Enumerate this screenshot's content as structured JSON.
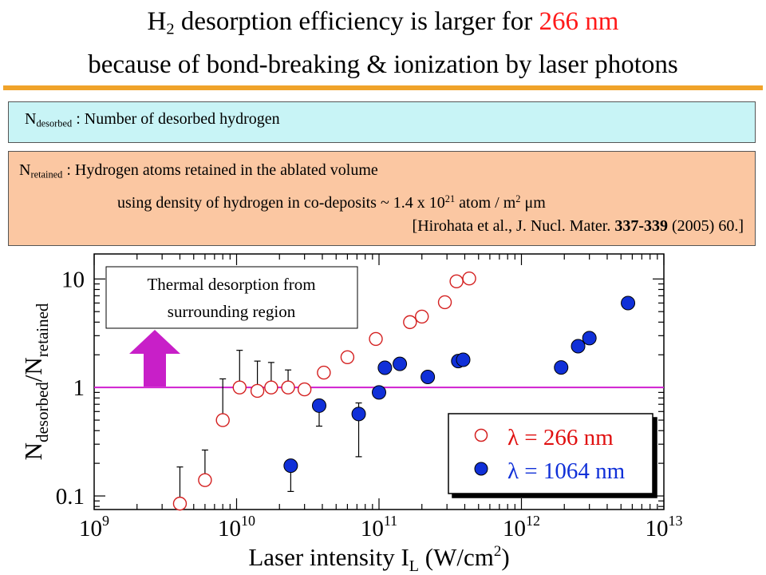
{
  "header": {
    "line1_prefix": "H",
    "line1_sub": "2",
    "line1_middle": " desorption efficiency is larger for ",
    "line1_highlight": "266 nm",
    "line2": "because of bond-breaking & ionization by laser photons"
  },
  "box_desorbed": {
    "symbol": "N",
    "sub": "desorbed",
    "text": " : Number of desorbed hydrogen"
  },
  "box_retained": {
    "symbol": "N",
    "sub": "retained",
    "text": " : Hydrogen atoms retained in the ablated volume",
    "line2_a": "using density of hydrogen in co-deposits ~ 1.4 x 10",
    "line2_exp": "21",
    "line2_b": " atom / m",
    "line2_exp2": "2",
    "line2_c": " μm",
    "ref_a": "[Hirohata et al., J. Nucl. Mater. ",
    "ref_bold": "337-339",
    "ref_b": " (2005) 60.]"
  },
  "colors": {
    "accent_title": "#ff1a1a",
    "rule": "#f0a32a",
    "box_desorbed_bg": "#c8f4f6",
    "box_retained_bg": "#fbc7a2",
    "series_266": "#d42020",
    "series_1064": "#1030d8",
    "threshold_line": "#d020d0"
  },
  "chart_data": {
    "type": "scatter",
    "x_scale": "log",
    "y_scale": "log",
    "xlim": [
      1000000000.0,
      10000000000000.0
    ],
    "ylim": [
      0.075,
      17
    ],
    "x_ticks": [
      {
        "value": 1000000000.0,
        "base": "10",
        "exp": "9"
      },
      {
        "value": 10000000000.0,
        "base": "10",
        "exp": "10"
      },
      {
        "value": 100000000000.0,
        "base": "10",
        "exp": "11"
      },
      {
        "value": 1000000000000.0,
        "base": "10",
        "exp": "12"
      },
      {
        "value": 10000000000000.0,
        "base": "10",
        "exp": "13"
      }
    ],
    "y_ticks": [
      {
        "value": 0.1,
        "label": "0.1"
      },
      {
        "value": 1,
        "label": "1"
      },
      {
        "value": 10,
        "label": "10"
      }
    ],
    "xlabel": {
      "a": "Laser intensity I",
      "sub": "L",
      "b": " (W/cm",
      "sup": "2",
      "c": ")"
    },
    "ylabel": {
      "n1": "N",
      "s1": "desorbed",
      "slash": "/",
      "n2": "N",
      "s2": "retained"
    },
    "reference_line_y": 1,
    "annotation": {
      "line1": "Thermal desorption from",
      "line2": "surrounding region",
      "arrow": "up-arrow"
    },
    "legend": {
      "position": "bottom-right",
      "entries": [
        {
          "marker": "open-circle",
          "label": "λ = 266 nm"
        },
        {
          "marker": "filled-circle",
          "label": "λ = 1064 nm"
        }
      ]
    },
    "series": [
      {
        "name": "λ = 266 nm",
        "marker": "open-circle",
        "points": [
          {
            "x": 4000000000.0,
            "y": 0.085,
            "err_up": 0.185
          },
          {
            "x": 6000000000.0,
            "y": 0.14,
            "err_up": 0.265
          },
          {
            "x": 8000000000.0,
            "y": 0.5,
            "err_up": 1.2
          },
          {
            "x": 10500000000.0,
            "y": 1.0,
            "err_up": 2.2
          },
          {
            "x": 14000000000.0,
            "y": 0.93,
            "err_up": 1.75
          },
          {
            "x": 17500000000.0,
            "y": 1.0,
            "err_up": 1.7
          },
          {
            "x": 23000000000.0,
            "y": 1.0,
            "err_up": 1.45
          },
          {
            "x": 30000000000.0,
            "y": 0.96,
            "err_up": null
          },
          {
            "x": 41000000000.0,
            "y": 1.37,
            "err_up": null
          },
          {
            "x": 60000000000.0,
            "y": 1.9,
            "err_up": null
          },
          {
            "x": 95000000000.0,
            "y": 2.8,
            "err_up": null
          },
          {
            "x": 165000000000.0,
            "y": 4.0,
            "err_up": null
          },
          {
            "x": 200000000000.0,
            "y": 4.5,
            "err_up": null
          },
          {
            "x": 290000000000.0,
            "y": 6.1,
            "err_up": null
          },
          {
            "x": 350000000000.0,
            "y": 9.5,
            "err_up": null
          },
          {
            "x": 430000000000.0,
            "y": 10.1,
            "err_up": null
          }
        ]
      },
      {
        "name": "λ = 1064 nm",
        "marker": "filled-circle",
        "points": [
          {
            "x": 24000000000.0,
            "y": 0.19,
            "err_down": 0.11
          },
          {
            "x": 38000000000.0,
            "y": 0.68,
            "err_down": 0.44
          },
          {
            "x": 72000000000.0,
            "y": 0.57,
            "err_up": 0.72,
            "err_down": 0.23
          },
          {
            "x": 100000000000.0,
            "y": 0.9
          },
          {
            "x": 110000000000.0,
            "y": 1.52
          },
          {
            "x": 140000000000.0,
            "y": 1.65
          },
          {
            "x": 220000000000.0,
            "y": 1.25
          },
          {
            "x": 360000000000.0,
            "y": 1.75
          },
          {
            "x": 390000000000.0,
            "y": 1.8
          },
          {
            "x": 1900000000000.0,
            "y": 1.53
          },
          {
            "x": 2500000000000.0,
            "y": 2.4
          },
          {
            "x": 3000000000000.0,
            "y": 2.85
          },
          {
            "x": 5600000000000.0,
            "y": 6.0
          }
        ]
      }
    ]
  }
}
